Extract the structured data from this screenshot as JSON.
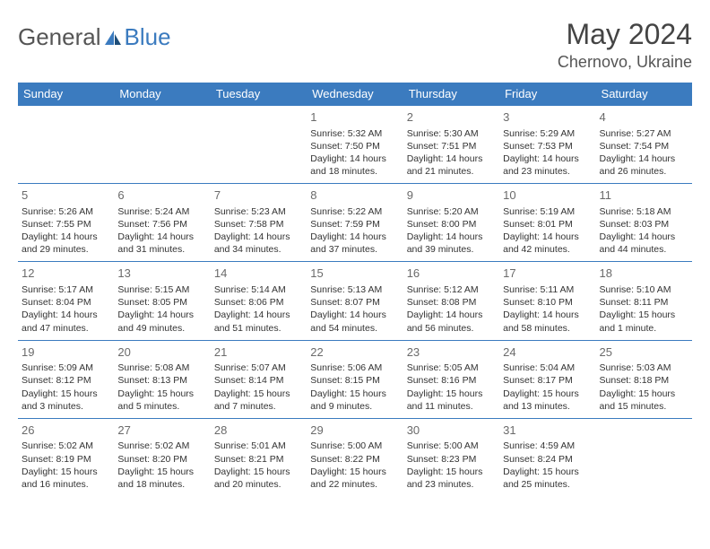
{
  "brand": {
    "general": "General",
    "blue": "Blue"
  },
  "title": "May 2024",
  "location": "Chernovo, Ukraine",
  "colors": {
    "accent": "#3b7bbf",
    "text": "#333333",
    "muted": "#6a6a6a",
    "background": "#ffffff"
  },
  "typography": {
    "title_fontsize": 32,
    "location_fontsize": 18,
    "header_fontsize": 13,
    "daynum_fontsize": 13,
    "cell_fontsize": 10.5,
    "logo_fontsize": 26
  },
  "calendar": {
    "type": "table",
    "columns": [
      "Sunday",
      "Monday",
      "Tuesday",
      "Wednesday",
      "Thursday",
      "Friday",
      "Saturday"
    ],
    "weeks": [
      [
        null,
        null,
        null,
        {
          "n": "1",
          "sr": "5:32 AM",
          "ss": "7:50 PM",
          "dl": "14 hours and 18 minutes."
        },
        {
          "n": "2",
          "sr": "5:30 AM",
          "ss": "7:51 PM",
          "dl": "14 hours and 21 minutes."
        },
        {
          "n": "3",
          "sr": "5:29 AM",
          "ss": "7:53 PM",
          "dl": "14 hours and 23 minutes."
        },
        {
          "n": "4",
          "sr": "5:27 AM",
          "ss": "7:54 PM",
          "dl": "14 hours and 26 minutes."
        }
      ],
      [
        {
          "n": "5",
          "sr": "5:26 AM",
          "ss": "7:55 PM",
          "dl": "14 hours and 29 minutes."
        },
        {
          "n": "6",
          "sr": "5:24 AM",
          "ss": "7:56 PM",
          "dl": "14 hours and 31 minutes."
        },
        {
          "n": "7",
          "sr": "5:23 AM",
          "ss": "7:58 PM",
          "dl": "14 hours and 34 minutes."
        },
        {
          "n": "8",
          "sr": "5:22 AM",
          "ss": "7:59 PM",
          "dl": "14 hours and 37 minutes."
        },
        {
          "n": "9",
          "sr": "5:20 AM",
          "ss": "8:00 PM",
          "dl": "14 hours and 39 minutes."
        },
        {
          "n": "10",
          "sr": "5:19 AM",
          "ss": "8:01 PM",
          "dl": "14 hours and 42 minutes."
        },
        {
          "n": "11",
          "sr": "5:18 AM",
          "ss": "8:03 PM",
          "dl": "14 hours and 44 minutes."
        }
      ],
      [
        {
          "n": "12",
          "sr": "5:17 AM",
          "ss": "8:04 PM",
          "dl": "14 hours and 47 minutes."
        },
        {
          "n": "13",
          "sr": "5:15 AM",
          "ss": "8:05 PM",
          "dl": "14 hours and 49 minutes."
        },
        {
          "n": "14",
          "sr": "5:14 AM",
          "ss": "8:06 PM",
          "dl": "14 hours and 51 minutes."
        },
        {
          "n": "15",
          "sr": "5:13 AM",
          "ss": "8:07 PM",
          "dl": "14 hours and 54 minutes."
        },
        {
          "n": "16",
          "sr": "5:12 AM",
          "ss": "8:08 PM",
          "dl": "14 hours and 56 minutes."
        },
        {
          "n": "17",
          "sr": "5:11 AM",
          "ss": "8:10 PM",
          "dl": "14 hours and 58 minutes."
        },
        {
          "n": "18",
          "sr": "5:10 AM",
          "ss": "8:11 PM",
          "dl": "15 hours and 1 minute."
        }
      ],
      [
        {
          "n": "19",
          "sr": "5:09 AM",
          "ss": "8:12 PM",
          "dl": "15 hours and 3 minutes."
        },
        {
          "n": "20",
          "sr": "5:08 AM",
          "ss": "8:13 PM",
          "dl": "15 hours and 5 minutes."
        },
        {
          "n": "21",
          "sr": "5:07 AM",
          "ss": "8:14 PM",
          "dl": "15 hours and 7 minutes."
        },
        {
          "n": "22",
          "sr": "5:06 AM",
          "ss": "8:15 PM",
          "dl": "15 hours and 9 minutes."
        },
        {
          "n": "23",
          "sr": "5:05 AM",
          "ss": "8:16 PM",
          "dl": "15 hours and 11 minutes."
        },
        {
          "n": "24",
          "sr": "5:04 AM",
          "ss": "8:17 PM",
          "dl": "15 hours and 13 minutes."
        },
        {
          "n": "25",
          "sr": "5:03 AM",
          "ss": "8:18 PM",
          "dl": "15 hours and 15 minutes."
        }
      ],
      [
        {
          "n": "26",
          "sr": "5:02 AM",
          "ss": "8:19 PM",
          "dl": "15 hours and 16 minutes."
        },
        {
          "n": "27",
          "sr": "5:02 AM",
          "ss": "8:20 PM",
          "dl": "15 hours and 18 minutes."
        },
        {
          "n": "28",
          "sr": "5:01 AM",
          "ss": "8:21 PM",
          "dl": "15 hours and 20 minutes."
        },
        {
          "n": "29",
          "sr": "5:00 AM",
          "ss": "8:22 PM",
          "dl": "15 hours and 22 minutes."
        },
        {
          "n": "30",
          "sr": "5:00 AM",
          "ss": "8:23 PM",
          "dl": "15 hours and 23 minutes."
        },
        {
          "n": "31",
          "sr": "4:59 AM",
          "ss": "8:24 PM",
          "dl": "15 hours and 25 minutes."
        },
        null
      ]
    ],
    "labels": {
      "sunrise": "Sunrise:",
      "sunset": "Sunset:",
      "daylight": "Daylight:"
    }
  }
}
